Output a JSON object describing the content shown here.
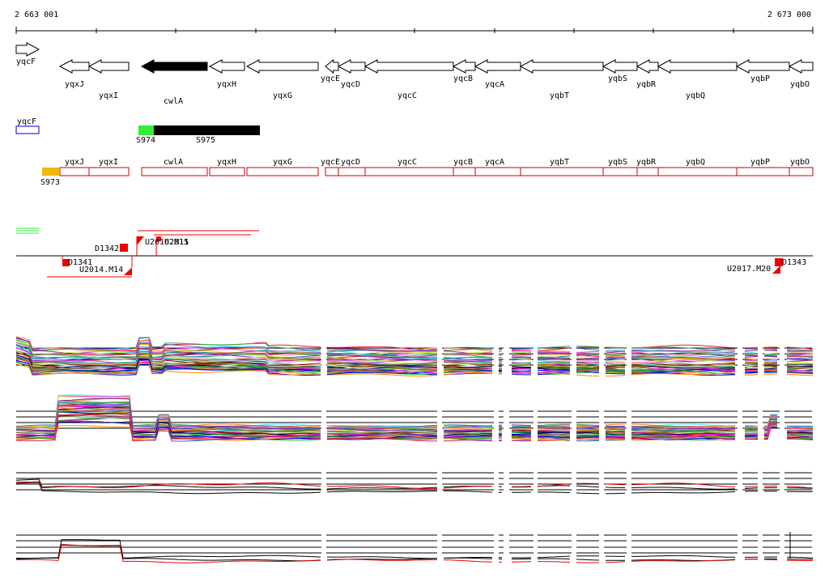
{
  "genome_browser": {
    "coord_start": "2 663 001",
    "coord_end": "2 673 000"
  },
  "colors": {
    "feature_outline": "#cc0000",
    "gene_black": "#000000",
    "promoter_green": "#33ee33",
    "terminator_orange": "#f0b800",
    "marker_red": "#ee0000",
    "new_gene_outline": "#0000cc"
  },
  "genes": [
    {
      "name": "yqcF",
      "strand": "+",
      "color": "#ffffff"
    },
    {
      "name": "yqxJ",
      "strand": "-",
      "color": "#ffffff"
    },
    {
      "name": "yqxI",
      "strand": "-",
      "color": "#ffffff"
    },
    {
      "name": "cwlA",
      "strand": "-",
      "color": "#000000"
    },
    {
      "name": "yqxH",
      "strand": "-",
      "color": "#ffffff"
    },
    {
      "name": "yqxG",
      "strand": "-",
      "color": "#ffffff"
    },
    {
      "name": "yqcE",
      "strand": "-",
      "color": "#ffffff"
    },
    {
      "name": "yqcD",
      "strand": "-",
      "color": "#ffffff"
    },
    {
      "name": "yqcC",
      "strand": "-",
      "color": "#ffffff"
    },
    {
      "name": "yqcB",
      "strand": "-",
      "color": "#ffffff"
    },
    {
      "name": "yqcA",
      "strand": "-",
      "color": "#ffffff"
    },
    {
      "name": "yqbT",
      "strand": "-",
      "color": "#ffffff"
    },
    {
      "name": "yqbS",
      "strand": "-",
      "color": "#ffffff"
    },
    {
      "name": "yqbR",
      "strand": "-",
      "color": "#ffffff"
    },
    {
      "name": "yqbQ",
      "strand": "-",
      "color": "#ffffff"
    },
    {
      "name": "yqbP",
      "strand": "-",
      "color": "#ffffff"
    },
    {
      "name": "yqbO",
      "strand": "-",
      "color": "#ffffff"
    }
  ],
  "forward_track_gene": "yqcF",
  "segments": [
    "S974",
    "S975",
    "S973"
  ],
  "reverse_track_genes": [
    "yqxJ",
    "yqxI",
    "cwlA",
    "yqxH",
    "yqxG",
    "yqcE",
    "yqcD",
    "yqcC",
    "yqcB",
    "yqcA",
    "yqbT",
    "yqbS",
    "yqbR",
    "yqbQ",
    "yqbP",
    "yqbO"
  ],
  "markers": [
    "D1342",
    "U2016.M11",
    "U2015",
    "D1341",
    "U2014.M14",
    "U2017.M20",
    "D1343"
  ]
}
